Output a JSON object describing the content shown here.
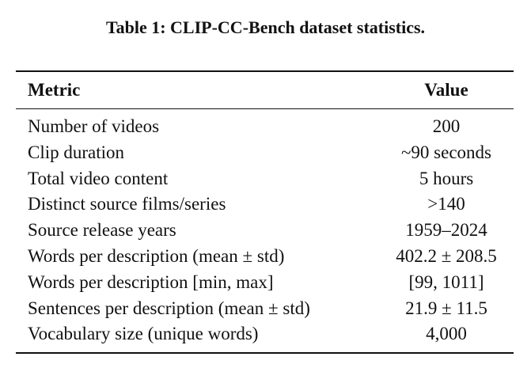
{
  "table": {
    "title": "Table 1: CLIP-CC-Bench dataset statistics.",
    "header": [
      "Metric",
      "Value"
    ],
    "rows": [
      [
        "Number of videos",
        "200"
      ],
      [
        "Clip duration",
        "~90 seconds"
      ],
      [
        "Total video content",
        "5 hours"
      ],
      [
        "Distinct source films/series",
        ">140"
      ],
      [
        "Source release years",
        "1959–2024"
      ],
      [
        "Words per description (mean ± std)",
        "402.2 ± 208.5"
      ],
      [
        "Words per description [min, max]",
        "[99, 1011]"
      ],
      [
        "Sentences per description (mean ± std)",
        "21.9 ± 11.5"
      ],
      [
        "Vocabulary size (unique words)",
        "4,000"
      ]
    ]
  }
}
